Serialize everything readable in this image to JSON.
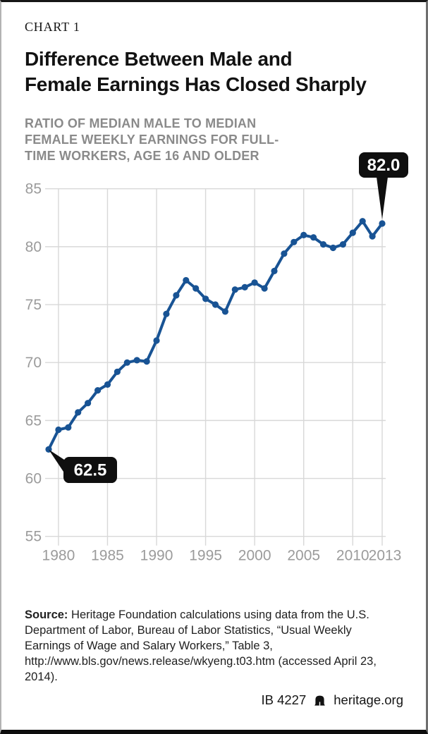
{
  "header": {
    "kicker": "CHART 1",
    "title_lines": [
      "Difference Between Male and",
      "Female Earnings Has Closed Sharply"
    ],
    "subtitle": "RATIO OF MEDIAN MALE TO MEDIAN FEMALE WEEKLY EARNINGS FOR FULL-TIME WORKERS, AGE 16 AND OLDER"
  },
  "chart_data": {
    "type": "line",
    "title": "Difference Between Male and Female Earnings Has Closed Sharply",
    "subtitle": "Ratio of median male to median female weekly earnings for full-time workers, age 16 and older",
    "x": [
      1979,
      1980,
      1981,
      1982,
      1983,
      1984,
      1985,
      1986,
      1987,
      1988,
      1989,
      1990,
      1991,
      1992,
      1993,
      1994,
      1995,
      1996,
      1997,
      1998,
      1999,
      2000,
      2001,
      2002,
      2003,
      2004,
      2005,
      2006,
      2007,
      2008,
      2009,
      2010,
      2011,
      2012,
      2013
    ],
    "values": [
      62.5,
      64.2,
      64.4,
      65.7,
      66.5,
      67.6,
      68.1,
      69.2,
      70.0,
      70.2,
      70.1,
      71.9,
      74.2,
      75.8,
      77.1,
      76.4,
      75.5,
      75.0,
      74.4,
      76.3,
      76.5,
      76.9,
      76.4,
      77.9,
      79.4,
      80.4,
      81.0,
      80.8,
      80.2,
      79.9,
      80.2,
      81.2,
      82.2,
      80.9,
      82.0
    ],
    "ylim": [
      55,
      85
    ],
    "yticks": [
      55,
      60,
      65,
      70,
      75,
      80,
      85
    ],
    "xticks": [
      1980,
      1985,
      1990,
      1995,
      2000,
      2005,
      2010,
      2013
    ],
    "grid": true,
    "legend": "none",
    "line_color": "#185394",
    "grid_color": "#d8d8d8",
    "tick_color": "#9b9b9b",
    "callout_bg": "#0f0f0f",
    "callout_text_color": "#ffffff",
    "annotations": [
      {
        "x": 1979,
        "y": 62.5,
        "label": "62.5",
        "placement": "right-below"
      },
      {
        "x": 2013,
        "y": 82.0,
        "label": "82.0",
        "placement": "above"
      }
    ]
  },
  "source": {
    "label": "Source:",
    "text": "Heritage Foundation calculations using data from the U.S. Department of Labor, Bureau of Labor Statistics, “Usual Weekly Earnings of Wage and Salary Workers,” Table 3, http://www.bls.gov/news.release/wkyeng.t03.htm (accessed April 23, 2014)."
  },
  "footer": {
    "report_id": "IB 4227",
    "site": "heritage.org"
  }
}
